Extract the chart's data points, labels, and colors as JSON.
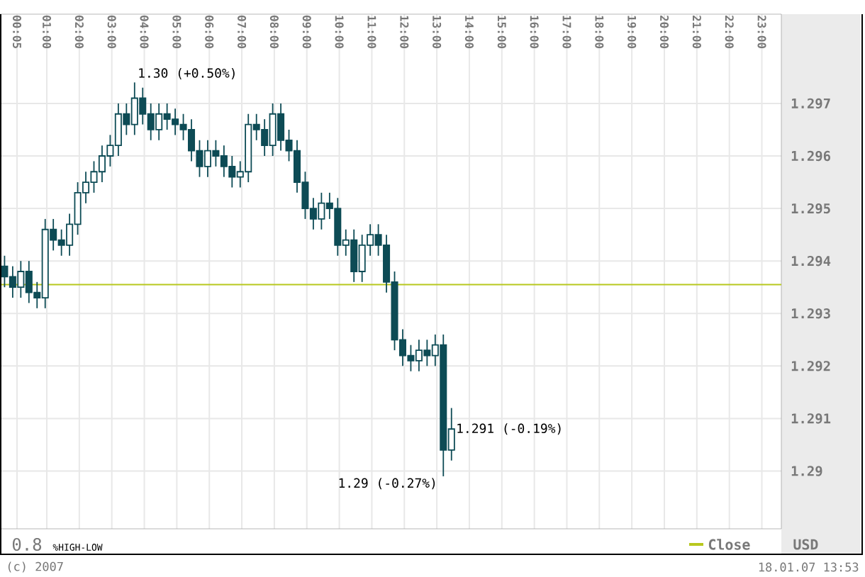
{
  "chart_data": {
    "type": "candlestick",
    "x": [
      -0.3,
      -0.05,
      0.2,
      0.45,
      0.7,
      0.95,
      1.2,
      1.45,
      1.7,
      1.95,
      2.2,
      2.45,
      2.7,
      2.95,
      3.2,
      3.45,
      3.7,
      3.95,
      4.2,
      4.45,
      4.7,
      4.95,
      5.2,
      5.45,
      5.7,
      5.95,
      6.2,
      6.45,
      6.7,
      6.95,
      7.2,
      7.45,
      7.7,
      7.95,
      8.2,
      8.45,
      8.7,
      8.95,
      9.2,
      9.45,
      9.7,
      9.95,
      10.2,
      10.45,
      10.7,
      10.95,
      11.2,
      11.45,
      11.7,
      11.95,
      12.2,
      12.45,
      12.7,
      12.95,
      13.2,
      13.45
    ],
    "ohlc": [
      [
        1.2939,
        1.2941,
        1.2935,
        1.2937
      ],
      [
        1.2937,
        1.2939,
        1.2933,
        1.2935
      ],
      [
        1.2935,
        1.294,
        1.2933,
        1.2938
      ],
      [
        1.2938,
        1.294,
        1.2932,
        1.2934
      ],
      [
        1.2934,
        1.2936,
        1.2931,
        1.2933
      ],
      [
        1.2933,
        1.2948,
        1.2931,
        1.2946
      ],
      [
        1.2946,
        1.2948,
        1.2942,
        1.2944
      ],
      [
        1.2944,
        1.2946,
        1.2941,
        1.2943
      ],
      [
        1.2943,
        1.2949,
        1.2941,
        1.2947
      ],
      [
        1.2947,
        1.2955,
        1.2945,
        1.2953
      ],
      [
        1.2953,
        1.2957,
        1.2951,
        1.2955
      ],
      [
        1.2955,
        1.2959,
        1.2953,
        1.2957
      ],
      [
        1.2957,
        1.2962,
        1.2955,
        1.296
      ],
      [
        1.296,
        1.2964,
        1.2958,
        1.2962
      ],
      [
        1.2962,
        1.297,
        1.296,
        1.2968
      ],
      [
        1.2968,
        1.297,
        1.2964,
        1.2966
      ],
      [
        1.2966,
        1.2974,
        1.2964,
        1.2971
      ],
      [
        1.2971,
        1.2973,
        1.2966,
        1.2968
      ],
      [
        1.2968,
        1.297,
        1.2963,
        1.2965
      ],
      [
        1.2965,
        1.297,
        1.2963,
        1.2968
      ],
      [
        1.2968,
        1.297,
        1.2965,
        1.2967
      ],
      [
        1.2967,
        1.2969,
        1.2964,
        1.2966
      ],
      [
        1.2966,
        1.2968,
        1.2963,
        1.2965
      ],
      [
        1.2965,
        1.2967,
        1.2959,
        1.2961
      ],
      [
        1.2961,
        1.2963,
        1.2956,
        1.2958
      ],
      [
        1.2958,
        1.2963,
        1.2956,
        1.2961
      ],
      [
        1.2961,
        1.2963,
        1.2958,
        1.296
      ],
      [
        1.296,
        1.2962,
        1.2956,
        1.2958
      ],
      [
        1.2958,
        1.296,
        1.2954,
        1.2956
      ],
      [
        1.2956,
        1.2959,
        1.2954,
        1.2957
      ],
      [
        1.2957,
        1.2968,
        1.2955,
        1.2966
      ],
      [
        1.2966,
        1.2968,
        1.2963,
        1.2965
      ],
      [
        1.2965,
        1.2967,
        1.296,
        1.2962
      ],
      [
        1.2962,
        1.297,
        1.296,
        1.2968
      ],
      [
        1.2968,
        1.297,
        1.2961,
        1.2963
      ],
      [
        1.2963,
        1.2965,
        1.2959,
        1.2961
      ],
      [
        1.2961,
        1.2963,
        1.2953,
        1.2955
      ],
      [
        1.2955,
        1.2957,
        1.2948,
        1.295
      ],
      [
        1.295,
        1.2952,
        1.2946,
        1.2948
      ],
      [
        1.2948,
        1.2953,
        1.2946,
        1.2951
      ],
      [
        1.2951,
        1.2953,
        1.2948,
        1.295
      ],
      [
        1.295,
        1.2952,
        1.2941,
        1.2943
      ],
      [
        1.2943,
        1.2946,
        1.2941,
        1.2944
      ],
      [
        1.2944,
        1.2946,
        1.2936,
        1.2938
      ],
      [
        1.2938,
        1.2945,
        1.2936,
        1.2943
      ],
      [
        1.2943,
        1.2947,
        1.2941,
        1.2945
      ],
      [
        1.2945,
        1.2947,
        1.2941,
        1.2943
      ],
      [
        1.2943,
        1.2945,
        1.2934,
        1.2936
      ],
      [
        1.2936,
        1.2938,
        1.2923,
        1.2925
      ],
      [
        1.2925,
        1.2927,
        1.292,
        1.2922
      ],
      [
        1.2922,
        1.2924,
        1.2919,
        1.2921
      ],
      [
        1.2921,
        1.2925,
        1.2919,
        1.2923
      ],
      [
        1.2923,
        1.2925,
        1.292,
        1.2922
      ],
      [
        1.2922,
        1.2926,
        1.292,
        1.2924
      ],
      [
        1.2924,
        1.2926,
        1.2899,
        1.2904
      ],
      [
        1.2904,
        1.2912,
        1.2902,
        1.2908
      ]
    ],
    "color": "#0d4b55",
    "xlim": [
      -0.44,
      23.6
    ],
    "xticks": [
      {
        "value": 0.0833,
        "label": "00:05"
      },
      {
        "value": 1,
        "label": "01:00"
      },
      {
        "value": 2,
        "label": "02:00"
      },
      {
        "value": 3,
        "label": "03:00"
      },
      {
        "value": 4,
        "label": "04:00"
      },
      {
        "value": 5,
        "label": "05:00"
      },
      {
        "value": 6,
        "label": "06:00"
      },
      {
        "value": 7,
        "label": "07:00"
      },
      {
        "value": 8,
        "label": "08:00"
      },
      {
        "value": 9,
        "label": "09:00"
      },
      {
        "value": 10,
        "label": "10:00"
      },
      {
        "value": 11,
        "label": "11:00"
      },
      {
        "value": 12,
        "label": "12:00"
      },
      {
        "value": 13,
        "label": "13:00"
      },
      {
        "value": 14,
        "label": "14:00"
      },
      {
        "value": 15,
        "label": "15:00"
      },
      {
        "value": 16,
        "label": "16:00"
      },
      {
        "value": 17,
        "label": "17:00"
      },
      {
        "value": 18,
        "label": "18:00"
      },
      {
        "value": 19,
        "label": "19:00"
      },
      {
        "value": 20,
        "label": "20:00"
      },
      {
        "value": 21,
        "label": "21:00"
      },
      {
        "value": 22,
        "label": "22:00"
      },
      {
        "value": 23,
        "label": "23:00"
      }
    ],
    "ylim": [
      1.2889,
      1.2987
    ],
    "yticks": [
      1.29,
      1.291,
      1.292,
      1.293,
      1.294,
      1.295,
      1.296,
      1.297
    ],
    "ylabel": "USD",
    "grid": true,
    "legend": "bottom right",
    "ref_lines": [
      {
        "axis": "y",
        "value": 1.29355,
        "label": "Close",
        "color": "#b8c81e"
      }
    ],
    "annotations": [
      {
        "text": "1.30 (+0.50%)",
        "x": 3.7,
        "y": 1.2974
      },
      {
        "text": "1.29 (-0.27%)",
        "x": 13.2,
        "y": 1.2899
      },
      {
        "text": "1.291 (-0.19%)",
        "x": 13.45,
        "y": 1.2908
      },
      "0.8",
      "%HIGH-LOW",
      "(c) 2007",
      "18.01.07 13:53"
    ]
  }
}
